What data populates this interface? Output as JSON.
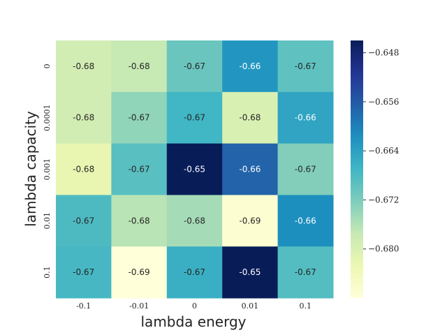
{
  "chart_data": {
    "type": "heatmap",
    "xlabel": "lambda energy",
    "ylabel": "lambda capacity",
    "x_categories": [
      "-0.1",
      "-0.01",
      "0",
      "0.01",
      "0.1"
    ],
    "y_categories": [
      "0",
      "0.0001",
      "0.001",
      "0.01",
      "0.1"
    ],
    "values": [
      [
        -0.679,
        -0.6775,
        -0.6705,
        -0.6625,
        -0.6695
      ],
      [
        -0.679,
        -0.6735,
        -0.667,
        -0.68,
        -0.6645
      ],
      [
        -0.682,
        -0.669,
        -0.646,
        -0.657,
        -0.6725
      ],
      [
        -0.668,
        -0.6765,
        -0.675,
        -0.687,
        -0.6615
      ],
      [
        -0.6675,
        -0.688,
        -0.666,
        -0.646,
        -0.6685
      ]
    ],
    "cell_labels": [
      [
        "-0.68",
        "-0.68",
        "-0.67",
        "-0.66",
        "-0.67"
      ],
      [
        "-0.68",
        "-0.67",
        "-0.67",
        "-0.68",
        "-0.66"
      ],
      [
        "-0.68",
        "-0.67",
        "-0.65",
        "-0.66",
        "-0.67"
      ],
      [
        "-0.67",
        "-0.68",
        "-0.68",
        "-0.69",
        "-0.66"
      ],
      [
        "-0.67",
        "-0.69",
        "-0.67",
        "-0.65",
        "-0.67"
      ]
    ],
    "colormap": "YlGnBu",
    "colorbar": {
      "vmin": -0.688,
      "vmax": -0.646,
      "ticks": [
        -0.68,
        -0.672,
        -0.664,
        -0.656,
        -0.648
      ],
      "tick_labels": [
        "−0.680",
        "−0.672",
        "−0.664",
        "−0.656",
        "−0.648"
      ]
    }
  }
}
